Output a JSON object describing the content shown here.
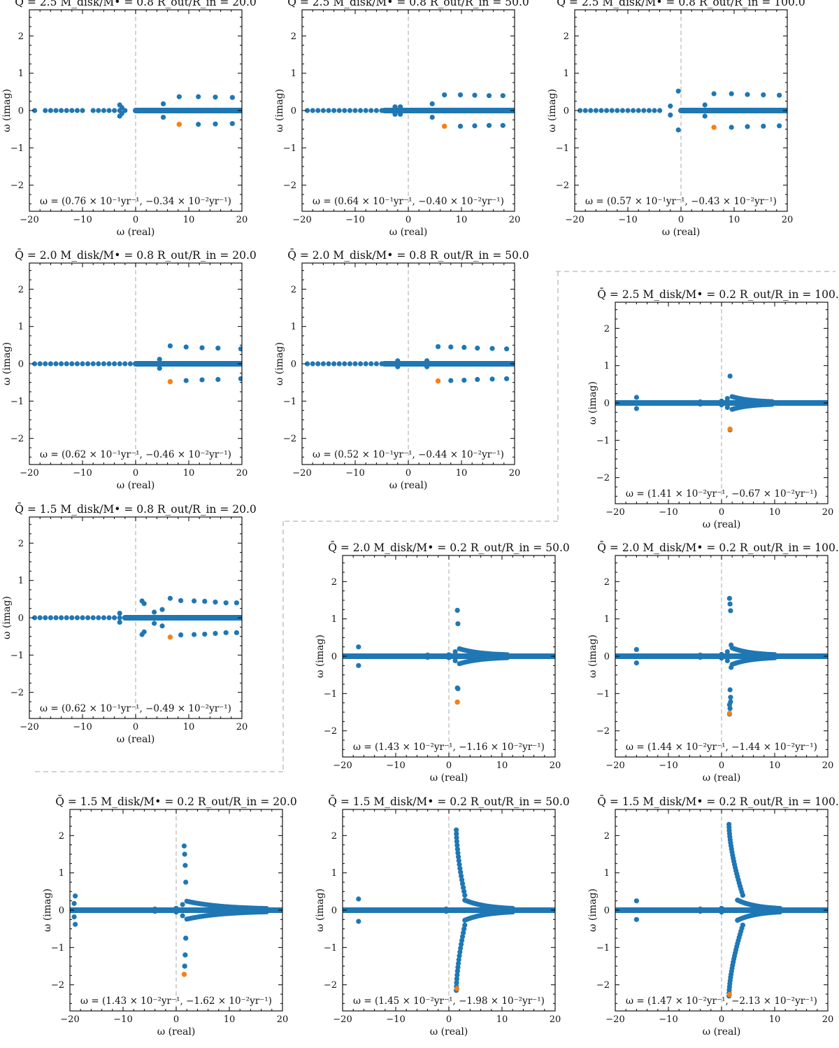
{
  "figure": {
    "marker_color": "#1f77b4",
    "highlight_color": "#ff7f0e",
    "divider_color": "#c4c4c4"
  },
  "chart_data": [
    {
      "type": "scatter",
      "title": "Q̄ = 2.5  M_disk/M• = 0.8  R_out/R_in = 20.0",
      "xlabel": "ω (real)",
      "ylabel": "ω (imag)",
      "xlim": [
        -20,
        20
      ],
      "ylim": [
        -2.7,
        2.7
      ],
      "xticks": [
        -20,
        -10,
        0,
        10,
        20
      ],
      "yticks": [
        -2,
        -1,
        0,
        1,
        2
      ],
      "annotation": "ω = (0.76 × 10⁻¹yr⁻¹, −0.34 × 10⁻²yr⁻¹)",
      "axis_x0": -20,
      "wing_re": [
        -19,
        -17,
        -16,
        -15,
        -14,
        -13,
        -12,
        -11,
        -10,
        -8,
        -7,
        -6,
        -5,
        -4,
        -3,
        -2
      ],
      "pairs": [
        [
          -3,
          0.15
        ],
        [
          -2.6,
          0.08
        ],
        [
          5.2,
          0.18
        ],
        [
          8.2,
          0.37
        ],
        [
          11.8,
          0.37
        ],
        [
          15,
          0.36
        ],
        [
          18.2,
          0.35
        ]
      ],
      "dense_x": [
        0,
        20
      ],
      "highlight": [
        8.2,
        -0.37
      ]
    },
    {
      "type": "scatter",
      "title": "Q̄ = 2.5  M_disk/M• = 0.8  R_out/R_in = 50.0",
      "xlabel": "ω (real)",
      "ylabel": "ω (imag)",
      "xlim": [
        -20,
        20
      ],
      "ylim": [
        -2.7,
        2.7
      ],
      "xticks": [
        -20,
        -10,
        0,
        10,
        20
      ],
      "yticks": [
        -2,
        -1,
        0,
        1,
        2
      ],
      "annotation": "ω = (0.64 × 10⁻¹yr⁻¹, −0.40 × 10⁻²yr⁻¹)",
      "axis_x0": -20,
      "wing_re": [
        -19,
        -18,
        -17,
        -16,
        -15,
        -14,
        -13,
        -12,
        -11,
        -10,
        -9,
        -8,
        -7,
        -6,
        -5
      ],
      "pairs": [
        [
          -2.5,
          0.1
        ],
        [
          -1.5,
          0.1
        ],
        [
          4.5,
          0.18
        ],
        [
          6.8,
          0.42
        ],
        [
          9.8,
          0.42
        ],
        [
          12.5,
          0.41
        ],
        [
          15.2,
          0.4
        ],
        [
          17.8,
          0.4
        ]
      ],
      "dense_x": [
        -4.5,
        20
      ],
      "highlight": [
        6.8,
        -0.42
      ]
    },
    {
      "type": "scatter",
      "title": "Q̄ = 2.5  M_disk/M• = 0.8  R_out/R_in = 100.0",
      "xlabel": "ω (real)",
      "ylabel": "ω (imag)",
      "xlim": [
        -20,
        20
      ],
      "ylim": [
        -2.7,
        2.7
      ],
      "xticks": [
        -20,
        -10,
        0,
        10,
        20
      ],
      "yticks": [
        -2,
        -1,
        0,
        1,
        2
      ],
      "annotation": "ω = (0.57 × 10⁻¹yr⁻¹, −0.43 × 10⁻²yr⁻¹)",
      "axis_x0": -20,
      "wing_re": [
        -19,
        -18,
        -17,
        -16,
        -15,
        -14,
        -13,
        -12,
        -11,
        -10,
        -9,
        -8,
        -7,
        -6,
        -5,
        -4
      ],
      "pairs": [
        [
          -0.5,
          0.52
        ],
        [
          -2,
          0.12
        ],
        [
          4.5,
          0.15
        ],
        [
          6.2,
          0.45
        ],
        [
          9.5,
          0.45
        ],
        [
          12.5,
          0.43
        ],
        [
          15.5,
          0.42
        ],
        [
          18.5,
          0.41
        ]
      ],
      "dense_x": [
        0,
        20
      ],
      "highlight": [
        6.2,
        -0.45
      ]
    },
    {
      "type": "scatter",
      "title": "Q̄ = 2.0  M_disk/M• = 0.8  R_out/R_in = 20.0",
      "xlabel": "ω (real)",
      "ylabel": "ω (imag)",
      "xlim": [
        -20,
        20
      ],
      "ylim": [
        -2.7,
        2.7
      ],
      "xticks": [
        -20,
        -10,
        0,
        10,
        20
      ],
      "yticks": [
        -2,
        -1,
        0,
        1,
        2
      ],
      "annotation": "ω = (0.62 × 10⁻¹yr⁻¹, −0.46 × 10⁻²yr⁻¹)",
      "axis_x0": -20,
      "wing_re": [
        -19,
        -18,
        -17,
        -16,
        -15,
        -14,
        -13,
        -12,
        -11,
        -10,
        -9,
        -8,
        -7,
        -6,
        -5,
        -4,
        -3,
        -2,
        -1
      ],
      "pairs": [
        [
          4.5,
          0.12
        ],
        [
          6.5,
          0.48
        ],
        [
          9.5,
          0.45
        ],
        [
          12.5,
          0.43
        ],
        [
          15.5,
          0.42
        ],
        [
          19.8,
          0.4
        ]
      ],
      "dense_x": [
        0,
        20
      ],
      "highlight": [
        6.5,
        -0.48
      ]
    },
    {
      "type": "scatter",
      "title": "Q̄ = 2.0  M_disk/M• = 0.8  R_out/R_in = 50.0",
      "xlabel": "ω (real)",
      "ylabel": "ω (imag)",
      "xlim": [
        -20,
        20
      ],
      "ylim": [
        -2.7,
        2.7
      ],
      "xticks": [
        -20,
        -10,
        0,
        10,
        20
      ],
      "yticks": [
        -2,
        -1,
        0,
        1,
        2
      ],
      "annotation": "ω = (0.52 × 10⁻¹yr⁻¹, −0.44 × 10⁻²yr⁻¹)",
      "axis_x0": -20,
      "wing_re": [
        -19,
        -18,
        -17,
        -16,
        -15,
        -14,
        -13,
        -12,
        -11,
        -10,
        -9,
        -8,
        -7,
        -6,
        -5
      ],
      "pairs": [
        [
          -2,
          0.08
        ],
        [
          3.5,
          0.08
        ],
        [
          5.6,
          0.46
        ],
        [
          8,
          0.45
        ],
        [
          10.5,
          0.44
        ],
        [
          13,
          0.42
        ],
        [
          15.8,
          0.41
        ],
        [
          18.5,
          0.4
        ]
      ],
      "dense_x": [
        -4.5,
        20
      ],
      "highlight": [
        5.6,
        -0.46
      ]
    },
    {
      "type": "scatter",
      "title": "Q̄ = 2.5  M_disk/M• = 0.2  R_out/R_in = 100.0",
      "xlabel": "ω (real)",
      "ylabel": "ω (imag)",
      "xlim": [
        -20,
        20
      ],
      "ylim": [
        -2.7,
        2.7
      ],
      "xticks": [
        -20,
        -10,
        0,
        10,
        20
      ],
      "yticks": [
        -2,
        -1,
        0,
        1,
        2
      ],
      "annotation": "ω = (1.41 × 10⁻²yr⁻¹, −0.67 × 10⁻²yr⁻¹)",
      "axis_x0": -20,
      "wing_re": [],
      "pairs": [
        [
          -16,
          0.15
        ],
        [
          -4,
          0.03
        ],
        [
          0,
          0.05
        ],
        [
          1.6,
          0.72
        ],
        [
          1.1,
          0.12
        ]
      ],
      "fan": {
        "start": 2,
        "end": 9.5,
        "amp": 0.15,
        "n": 22
      },
      "dense_x": [
        -20,
        20
      ],
      "highlight": [
        1.6,
        -0.7
      ]
    },
    {
      "type": "scatter",
      "title": "Q̄ = 1.5  M_disk/M• = 0.8  R_out/R_in = 20.0",
      "xlabel": "ω (real)",
      "ylabel": "ω (imag)",
      "xlim": [
        -20,
        20
      ],
      "ylim": [
        -2.7,
        2.7
      ],
      "xticks": [
        -20,
        -10,
        0,
        10,
        20
      ],
      "yticks": [
        -2,
        -1,
        0,
        1,
        2
      ],
      "annotation": "ω = (0.62 × 10⁻¹yr⁻¹, −0.49 × 10⁻²yr⁻¹)",
      "axis_x0": -20,
      "wing_re": [
        -19,
        -18,
        -17,
        -16,
        -15,
        -14,
        -13,
        -12,
        -11,
        -10,
        -9,
        -8,
        -7,
        -6,
        -5,
        -4,
        -3,
        -2
      ],
      "pairs": [
        [
          -3,
          0.12
        ],
        [
          1.2,
          0.45
        ],
        [
          1.6,
          0.38
        ],
        [
          3.5,
          0.15
        ],
        [
          5,
          0.22
        ],
        [
          6.5,
          0.52
        ],
        [
          8.5,
          0.46
        ],
        [
          11,
          0.45
        ],
        [
          13,
          0.44
        ],
        [
          15,
          0.42
        ],
        [
          17,
          0.4
        ],
        [
          19,
          0.4
        ]
      ],
      "dense_x": [
        -2,
        20
      ],
      "highlight": [
        6.5,
        -0.52
      ]
    },
    {
      "type": "scatter",
      "title": "Q̄ = 2.0  M_disk/M• = 0.2  R_out/R_in = 50.0",
      "xlabel": "ω (real)",
      "ylabel": "ω (imag)",
      "xlim": [
        -20,
        20
      ],
      "ylim": [
        -2.7,
        2.7
      ],
      "xticks": [
        -20,
        -10,
        0,
        10,
        20
      ],
      "yticks": [
        -2,
        -1,
        0,
        1,
        2
      ],
      "annotation": "ω = (1.43 × 10⁻²yr⁻¹, −1.16 × 10⁻²yr⁻¹)",
      "axis_x0": -20,
      "wing_re": [],
      "pairs": [
        [
          -17,
          0.25
        ],
        [
          -4,
          0.03
        ],
        [
          0,
          0.04
        ],
        [
          1.6,
          1.23
        ],
        [
          1.7,
          0.87
        ],
        [
          1.2,
          0.12
        ]
      ],
      "fan": {
        "start": 2,
        "end": 11,
        "amp": 0.18,
        "n": 25
      },
      "dense_x": [
        -20,
        20
      ],
      "highlight": [
        1.6,
        -1.23
      ],
      "extra": [
        [
          1.6,
          -0.85
        ]
      ]
    },
    {
      "type": "scatter",
      "title": "Q̄ = 2.0  M_disk/M• = 0.2  R_out/R_in = 100.0",
      "xlabel": "ω (real)",
      "ylabel": "ω (imag)",
      "xlim": [
        -20,
        20
      ],
      "ylim": [
        -2.7,
        2.7
      ],
      "xticks": [
        -20,
        -10,
        0,
        10,
        20
      ],
      "yticks": [
        -2,
        -1,
        0,
        1,
        2
      ],
      "annotation": "ω = (1.44 × 10⁻²yr⁻¹, −1.44 × 10⁻²yr⁻¹)",
      "axis_x0": -20,
      "wing_re": [],
      "pairs": [
        [
          -16,
          0.18
        ],
        [
          -4,
          0.03
        ],
        [
          0,
          0.05
        ],
        [
          1.5,
          1.55
        ],
        [
          1.6,
          1.4
        ],
        [
          1.7,
          1.22
        ],
        [
          1.8,
          0.3
        ],
        [
          1.1,
          0.12
        ]
      ],
      "fan": {
        "start": 2,
        "end": 10,
        "amp": 0.2,
        "n": 24
      },
      "dense_x": [
        -20,
        20
      ],
      "highlight": [
        1.5,
        -1.53
      ],
      "extra": [
        [
          1.6,
          -0.9
        ],
        [
          1.7,
          -1.1
        ],
        [
          1.5,
          -1.3
        ]
      ]
    },
    {
      "type": "scatter",
      "title": "Q̄ = 1.5  M_disk/M• = 0.2  R_out/R_in = 20.0",
      "xlabel": "ω (real)",
      "ylabel": "ω (imag)",
      "xlim": [
        -20,
        20
      ],
      "ylim": [
        -2.7,
        2.7
      ],
      "xticks": [
        -20,
        -10,
        0,
        10,
        20
      ],
      "yticks": [
        -2,
        -1,
        0,
        1,
        2
      ],
      "annotation": "ω = (1.43 × 10⁻²yr⁻¹, −1.62 × 10⁻²yr⁻¹)",
      "axis_x0": -20,
      "wing_re": [],
      "pairs": [
        [
          -19,
          0.38
        ],
        [
          -19.2,
          0.18
        ],
        [
          -4,
          0.03
        ],
        [
          0,
          0.05
        ],
        [
          1.5,
          1.72
        ],
        [
          1.6,
          1.5
        ],
        [
          1.7,
          1.2
        ],
        [
          1.8,
          0.75
        ],
        [
          1.2,
          0.15
        ]
      ],
      "fan": {
        "start": 2,
        "end": 17,
        "amp": 0.22,
        "n": 40
      },
      "dense_x": [
        -20,
        20
      ],
      "highlight": [
        1.5,
        -1.72
      ],
      "extra": [
        [
          1.6,
          -1.5
        ],
        [
          1.7,
          -1.2
        ],
        [
          1.8,
          -0.75
        ]
      ]
    },
    {
      "type": "scatter",
      "title": "Q̄ = 1.5  M_disk/M• = 0.2  R_out/R_in = 50.0",
      "xlabel": "ω (real)",
      "ylabel": "ω (imag)",
      "xlim": [
        -20,
        20
      ],
      "ylim": [
        -2.7,
        2.7
      ],
      "xticks": [
        -20,
        -10,
        0,
        10,
        20
      ],
      "yticks": [
        -2,
        -1,
        0,
        1,
        2
      ],
      "annotation": "ω = (1.45 × 10⁻²yr⁻¹, −1.98 × 10⁻²yr⁻¹)",
      "axis_x0": -20,
      "wing_re": [],
      "pairs": [
        [
          -17,
          0.3
        ],
        [
          -0.5,
          0.03
        ]
      ],
      "arc": {
        "re0": 1.4,
        "im0": 2.15,
        "re1": 3.0,
        "im1": 0.4,
        "n": 18
      },
      "fan": {
        "start": 3,
        "end": 12,
        "amp": 0.25,
        "n": 28
      },
      "dense_x": [
        -20,
        20
      ],
      "highlight": [
        1.5,
        -2.1
      ]
    },
    {
      "type": "scatter",
      "title": "Q̄ = 1.5  M_disk/M• = 0.2  R_out/R_in = 100.0",
      "xlabel": "ω (real)",
      "ylabel": "ω (imag)",
      "xlim": [
        -20,
        20
      ],
      "ylim": [
        -2.7,
        2.7
      ],
      "xticks": [
        -20,
        -10,
        0,
        10,
        20
      ],
      "yticks": [
        -2,
        -1,
        0,
        1,
        2
      ],
      "annotation": "ω = (1.47 × 10⁻²yr⁻¹, −2.13 × 10⁻²yr⁻¹)",
      "axis_x0": -20,
      "wing_re": [],
      "pairs": [
        [
          -16,
          0.25
        ],
        [
          -4,
          0.03
        ],
        [
          0,
          0.05
        ]
      ],
      "arc": {
        "re0": 1.4,
        "im0": 2.3,
        "re1": 4.0,
        "im1": 0.4,
        "n": 24
      },
      "fan": {
        "start": 3,
        "end": 11,
        "amp": 0.25,
        "n": 26
      },
      "dense_x": [
        -20,
        20
      ],
      "highlight": [
        1.5,
        -2.26
      ]
    }
  ]
}
